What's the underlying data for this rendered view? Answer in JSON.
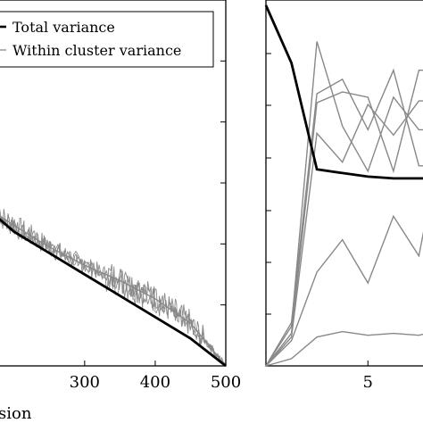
{
  "chart_data": [
    {
      "type": "line",
      "title": "",
      "xlabel": "sion",
      "ylabel": "",
      "xlim": [
        175,
        500
      ],
      "x_ticks": [
        300,
        400,
        500
      ],
      "x_tick_labels": [
        "300",
        "400",
        "500"
      ],
      "legend_position": "top-left",
      "grid": false,
      "series": [
        {
          "name": "Total variance",
          "color": "#000000",
          "x": [
            175,
            200,
            250,
            300,
            350,
            400,
            450,
            500
          ],
          "y": [
            0.245,
            0.22,
            0.185,
            0.15,
            0.115,
            0.08,
            0.045,
            0.0
          ]
        },
        {
          "name": "Within cluster variance",
          "color": "#888888",
          "x": [
            175,
            200,
            250,
            300,
            350,
            400,
            450,
            500
          ],
          "y": [
            0.25,
            0.23,
            0.195,
            0.165,
            0.14,
            0.11,
            0.07,
            0.0
          ]
        }
      ]
    },
    {
      "type": "line",
      "title": "",
      "xlabel": "",
      "ylabel": "",
      "xlim": [
        1,
        7.3
      ],
      "ylim": [
        0,
        1
      ],
      "x_ticks": [
        5
      ],
      "x_tick_labels": [
        "5"
      ],
      "grid": false,
      "series": [
        {
          "name": "Total variance",
          "color": "#000000",
          "x": [
            1,
            2,
            3,
            4,
            5,
            6,
            7,
            7.3
          ],
          "y": [
            1.0,
            0.84,
            0.545,
            0.535,
            0.525,
            0.52,
            0.52,
            0.52
          ]
        },
        {
          "color": "#888888",
          "x": [
            1,
            2,
            3,
            4,
            5,
            6,
            7,
            7.3
          ],
          "y": [
            0.0,
            0.12,
            0.755,
            0.795,
            0.655,
            0.82,
            0.555,
            0.555
          ]
        },
        {
          "color": "#888888",
          "x": [
            1,
            2,
            3,
            4,
            5,
            6,
            7,
            7.3
          ],
          "y": [
            0.0,
            0.09,
            0.73,
            0.76,
            0.745,
            0.54,
            0.82,
            0.82
          ]
        },
        {
          "color": "#888888",
          "x": [
            1,
            2,
            3,
            4,
            5,
            6,
            7,
            7.3
          ],
          "y": [
            0.0,
            0.11,
            0.9,
            0.665,
            0.54,
            0.745,
            0.655,
            0.655
          ]
        },
        {
          "color": "#888888",
          "x": [
            1,
            2,
            3,
            4,
            5,
            6,
            7,
            7.3
          ],
          "y": [
            0.0,
            0.08,
            0.645,
            0.565,
            0.725,
            0.64,
            0.735,
            0.735
          ]
        },
        {
          "color": "#888888",
          "x": [
            1,
            2,
            3,
            4,
            5,
            6,
            7,
            7.3
          ],
          "y": [
            0.0,
            0.07,
            0.26,
            0.35,
            0.23,
            0.415,
            0.305,
            0.415
          ]
        },
        {
          "color": "#888888",
          "x": [
            1,
            2,
            3,
            4,
            5,
            6,
            7,
            7.3
          ],
          "y": [
            0.0,
            0.02,
            0.08,
            0.095,
            0.085,
            0.09,
            0.085,
            0.09
          ]
        }
      ]
    }
  ]
}
